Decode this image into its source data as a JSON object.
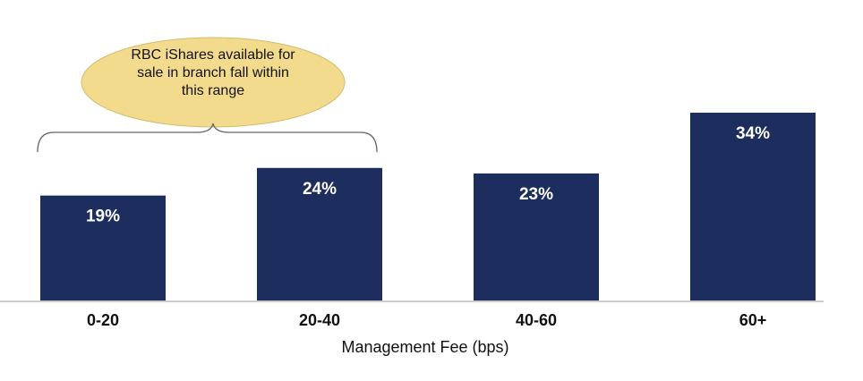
{
  "chart_data": {
    "type": "bar",
    "x_label": "Management Fee (bps)",
    "categories": [
      "0-20",
      "20-40",
      "40-60",
      "60+"
    ],
    "values": [
      19,
      24,
      23,
      34
    ],
    "value_labels": [
      "19%",
      "24%",
      "23%",
      "34%"
    ],
    "color": "#1c2d5e",
    "annotation": "RBC iShares available for sale in branch fall within this range"
  }
}
